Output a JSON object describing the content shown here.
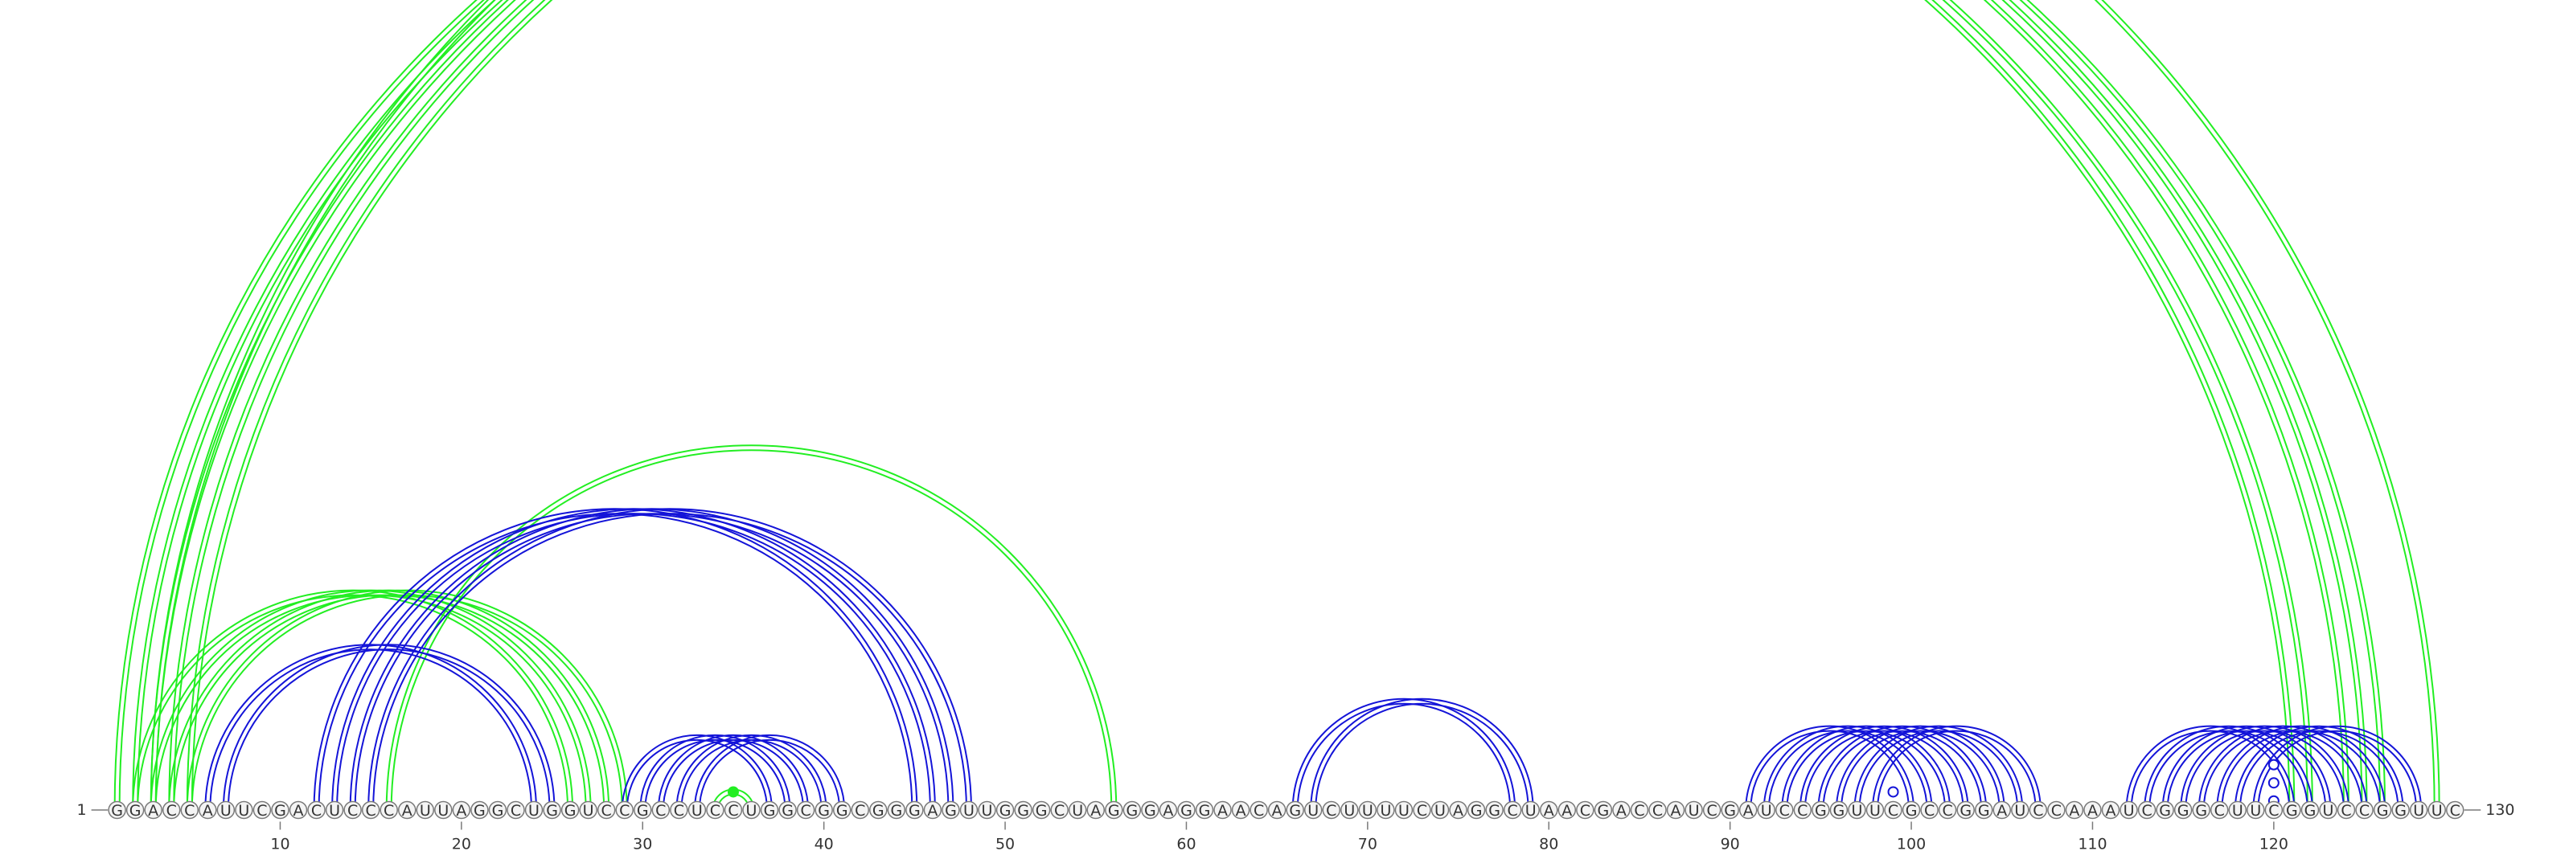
{
  "sequence": "GGACCAUUCGACUCCCAUUAGGCUGGUCCGCCUCCUGGCGGCGGGAGUUGGGCUAGGGAGGAACAGUCUUUUCUAGGCUAACGACCAUCGAUCCGGUUCGCCGGAUCCAAAUCGGGCUUCGGUCCGGUUC",
  "start_label": "1",
  "end_label": "130",
  "ticks": [
    "10",
    "20",
    "30",
    "40",
    "50",
    "60",
    "70",
    "80",
    "90",
    "100",
    "110",
    "120"
  ],
  "colors": {
    "green": "#22ee22",
    "blue": "#1414d8"
  },
  "helices": [
    {
      "color": "green",
      "i": [
        1,
        2,
        3,
        4,
        5
      ],
      "j": [
        121,
        122,
        124,
        125,
        126
      ]
    },
    {
      "color": "green",
      "i": [
        3
      ],
      "j": [
        129
      ]
    },
    {
      "color": "green",
      "i": [
        2,
        3,
        4,
        5
      ],
      "j": [
        26,
        27,
        28,
        29
      ]
    },
    {
      "color": "green",
      "i": [
        16
      ],
      "j": [
        56
      ]
    },
    {
      "color": "green",
      "i": [
        34
      ],
      "j": [
        36
      ]
    },
    {
      "color": "blue",
      "i": [
        6,
        7
      ],
      "j": [
        24,
        25
      ]
    },
    {
      "color": "blue",
      "i": [
        12,
        13,
        14,
        15
      ],
      "j": [
        45,
        46,
        47,
        48
      ]
    },
    {
      "color": "blue",
      "i": [
        29,
        30,
        31,
        32,
        33
      ],
      "j": [
        37,
        38,
        39,
        40,
        41
      ]
    },
    {
      "color": "blue",
      "i": [
        66,
        67
      ],
      "j": [
        78,
        79
      ]
    },
    {
      "color": "blue",
      "i": [
        91,
        92,
        93,
        94,
        95,
        96,
        97,
        98
      ],
      "j": [
        100,
        101,
        102,
        103,
        104,
        105,
        106,
        107
      ]
    },
    {
      "color": "blue",
      "i": [
        112,
        113,
        114,
        115,
        116,
        117,
        118,
        119
      ],
      "j": [
        121,
        122,
        123,
        124,
        125,
        126,
        127,
        128
      ]
    }
  ],
  "markers": [
    {
      "color": "green",
      "pos": 64.5,
      "span": 63.5,
      "filled": false
    },
    {
      "color": "green",
      "pos": 35,
      "span": 1,
      "filled": true
    },
    {
      "color": "blue",
      "pos": 99,
      "span": 1,
      "filled": false
    },
    {
      "color": "blue",
      "pos": 120,
      "span": 2.5,
      "filled": false
    },
    {
      "color": "blue",
      "pos": 120,
      "span": 1.5,
      "filled": false
    },
    {
      "color": "blue",
      "pos": 120,
      "span": 0.5,
      "filled": false
    }
  ]
}
